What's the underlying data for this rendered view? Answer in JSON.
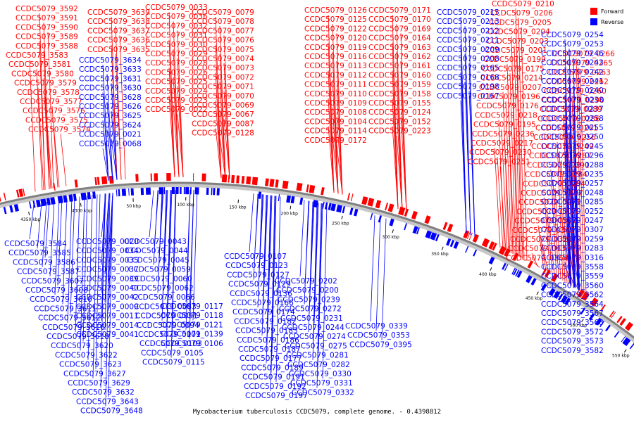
{
  "caption": "Mycobacterium tuberculosis CCDC5079, complete genome. - 0.4398812",
  "colors": {
    "forward": "#ff0000",
    "reverse": "#0000ff",
    "backbone": "#808080"
  },
  "legend": [
    {
      "label": "Forward",
      "color": "#ff0000"
    },
    {
      "label": "Reverse",
      "color": "#0000ff"
    }
  ],
  "scale_ticks": [
    "4350 kbp",
    "4300 kbp",
    "50 kbp",
    "100 kbp",
    "150 kbp",
    "200 kbp",
    "250 kbp",
    "300 kbp",
    "350 kbp",
    "400 kbp",
    "450 kbp",
    "500 kbp",
    "550 kbp"
  ],
  "forward_labels": [
    "CCDC5079_3592",
    "CCDC5079_3591",
    "CCDC5079_3590",
    "CCDC5079_3589",
    "CCDC5079_3588",
    "CCDC5079_3583",
    "CCDC5079_3581",
    "CCDC5079_3580",
    "CCDC5079_3579",
    "CCDC5079_3578",
    "CCDC5079_3577",
    "CCDC5079_3576",
    "CCDC5079_3575",
    "CCDC5079_3574",
    "CCDC5079_3639",
    "CCDC5079_3638",
    "CCDC5079_3637",
    "CCDC5079_3636",
    "CCDC5079_3635",
    "CCDC5079_0033",
    "CCDC5079_0036",
    "CCDC5079_0032",
    "CCDC5079_0031",
    "CCDC5079_0030",
    "CCDC5079_0029",
    "CCDC5079_0028",
    "CCDC5079_0026",
    "CCDC5079_0025",
    "CCDC5079_0024",
    "CCDC5079_0023",
    "CCDC5079_0022",
    "CCDC5079_0079",
    "CCDC5079_0078",
    "CCDC5079_0077",
    "CCDC5079_0076",
    "CCDC5079_0075",
    "CCDC5079_0074",
    "CCDC5079_0073",
    "CCDC5079_0072",
    "CCDC5079_0071",
    "CCDC5079_0070",
    "CCDC5079_0069",
    "CCDC5079_0067",
    "CCDC5079_0087",
    "CCDC5079_0128",
    "CCDC5079_0126",
    "CCDC5079_0125",
    "CCDC5079_0122",
    "CCDC5079_0120",
    "CCDC5079_0119",
    "CCDC5079_0116",
    "CCDC5079_0113",
    "CCDC5079_0112",
    "CCDC5079_0111",
    "CCDC5079_0110",
    "CCDC5079_0109",
    "CCDC5079_0108",
    "CCDC5079_0104",
    "CCDC5079_0114",
    "CCDC5079_0172",
    "CCDC5079_0171",
    "CCDC5079_0170",
    "CCDC5079_0169",
    "CCDC5079_0164",
    "CCDC5079_0163",
    "CCDC5079_0162",
    "CCDC5079_0161",
    "CCDC5079_0160",
    "CCDC5079_0159",
    "CCDC5079_0158",
    "CCDC5079_0155",
    "CCDC5079_0124",
    "CCDC5079_0152",
    "CCDC5079_0223",
    "CCDC5079_0210",
    "CCDC5079_0206",
    "CCDC5079_0205",
    "CCDC5079_0204",
    "CCDC5079_0203",
    "CCDC5079_0201",
    "CCDC5079_0199",
    "CCDC5079_0175",
    "CCDC5079_0214",
    "CCDC5079_0207",
    "CCDC5079_0196",
    "CCDC5079_0176",
    "CCDC5079_0218",
    "CCDC5079_0195",
    "CCDC5079_0236",
    "CCDC5079_0217",
    "CCDC5079_0230",
    "CCDC5079_0251",
    "CCDC5079_0266",
    "CCDC5079_0265",
    "CCDC5079_0263",
    "CCDC5079_0262",
    "CCDC5079_0260",
    "CCDC5079_0290",
    "CCDC5079_0289",
    "CCDC5079_0286",
    "CCDC5079_0261",
    "CCDC5079_0256",
    "CCDC5079_0249",
    "CCDC5079_0287",
    "CCDC5079_0291",
    "CCDC5079_0284",
    "CCDC5079_0264",
    "CCDC5079_0297",
    "CCDC5079_0271",
    "CCDC5079_0317",
    "CCDC5079_0327",
    "CCDC5079_0302",
    "CCDC5079_0328",
    "CCDC5079_0337",
    "CCDC5079_0364"
  ],
  "reverse_labels": [
    "CCDC5079_3634",
    "CCDC5079_3633",
    "CCDC5079_3631",
    "CCDC5079_3630",
    "CCDC5079_3628",
    "CCDC5079_3626",
    "CCDC5079_3625",
    "CCDC5079_3624",
    "CCDC5079_0021",
    "CCDC5079_0068",
    "CCDC5079_0215",
    "CCDC5079_0213",
    "CCDC5079_0212",
    "CCDC5079_0211",
    "CCDC5079_0209",
    "CCDC5079_0208",
    "CCDC5079_0165",
    "CCDC5079_0168",
    "CCDC5079_0198",
    "CCDC5079_0167",
    "CCDC5079_0254",
    "CCDC5079_0253",
    "CCDC5079_0246",
    "CCDC5079_0243",
    "CCDC5079_0242",
    "CCDC5079_0241",
    "CCDC5079_0240",
    "CCDC5079_0238",
    "CCDC5079_0237",
    "CCDC5079_0258",
    "CCDC5079_0255",
    "CCDC5079_0250",
    "CCDC5079_0245",
    "CCDC5079_0296",
    "CCDC5079_0288",
    "CCDC5079_0235",
    "CCDC5079_0257",
    "CCDC5079_0248",
    "CCDC5079_0285",
    "CCDC5079_0252",
    "CCDC5079_0247",
    "CCDC5079_0307",
    "CCDC5079_0259",
    "CCDC5079_0283",
    "CCDC5079_0316",
    "CCDC5079_3558",
    "CCDC5079_3559",
    "CCDC5079_3560",
    "CCDC5079_3562",
    "CCDC5079_3564",
    "CCDC5079_3567",
    "CCDC5079_3568",
    "CCDC5079_3572",
    "CCDC5079_3573",
    "CCDC5079_3582",
    "CCDC5079_3584",
    "CCDC5079_3585",
    "CCDC5079_3586",
    "CCDC5079_3587",
    "CCDC5079_3607",
    "CCDC5079_3608",
    "CCDC5079_3610",
    "CCDC5079_3611",
    "CCDC5079_3612",
    "CCDC5079_3616",
    "CCDC5079_3618",
    "CCDC5079_3620",
    "CCDC5079_3622",
    "CCDC5079_3623",
    "CCDC5079_3627",
    "CCDC5079_3629",
    "CCDC5079_3632",
    "CCDC5079_3643",
    "CCDC5079_3648",
    "CCDC5079_0020",
    "CCDC5079_0034",
    "CCDC5079_0035",
    "CCDC5079_0037",
    "CCDC5079_0039",
    "CCDC5079_0040",
    "CCDC5079_0042",
    "CCDC5079_0009",
    "CCDC5079_0011",
    "CCDC5079_0014",
    "CCDC5079_0041",
    "CCDC5079_0043",
    "CCDC5079_0044",
    "CCDC5079_0045",
    "CCDC5079_0059",
    "CCDC5079_0060",
    "CCDC5079_0062",
    "CCDC5079_0066",
    "CCDC5079_0083",
    "CCDC5079_0091",
    "CCDC5079_0094",
    "CCDC5079_0101",
    "CCDC5079_0103",
    "CCDC5079_0105",
    "CCDC5079_0115",
    "CCDC5079_0117",
    "CCDC5079_0118",
    "CCDC5079_0121",
    "CCDC5079_0139",
    "CCDC5079_0106",
    "CCDC5079_0107",
    "CCDC5079_0123",
    "CCDC5079_0127",
    "CCDC5079_0129",
    "CCDC5079_0136",
    "CCDC5079_0166",
    "CCDC5079_0174",
    "CCDC5079_0182",
    "CCDC5079_0183",
    "CCDC5079_0186",
    "CCDC5079_0187",
    "CCDC5079_0177",
    "CCDC5079_0189",
    "CCDC5079_0191",
    "CCDC5079_0192",
    "CCDC5079_0197",
    "CCDC5079_0202",
    "CCDC5079_0200",
    "CCDC5079_0239",
    "CCDC5079_0272",
    "CCDC5079_0231",
    "CCDC5079_0244",
    "CCDC5079_0274",
    "CCDC5079_0275",
    "CCDC5079_0281",
    "CCDC5079_0282",
    "CCDC5079_0330",
    "CCDC5079_0331",
    "CCDC5079_0332",
    "CCDC5079_0339",
    "CCDC5079_0353",
    "CCDC5079_0395"
  ]
}
